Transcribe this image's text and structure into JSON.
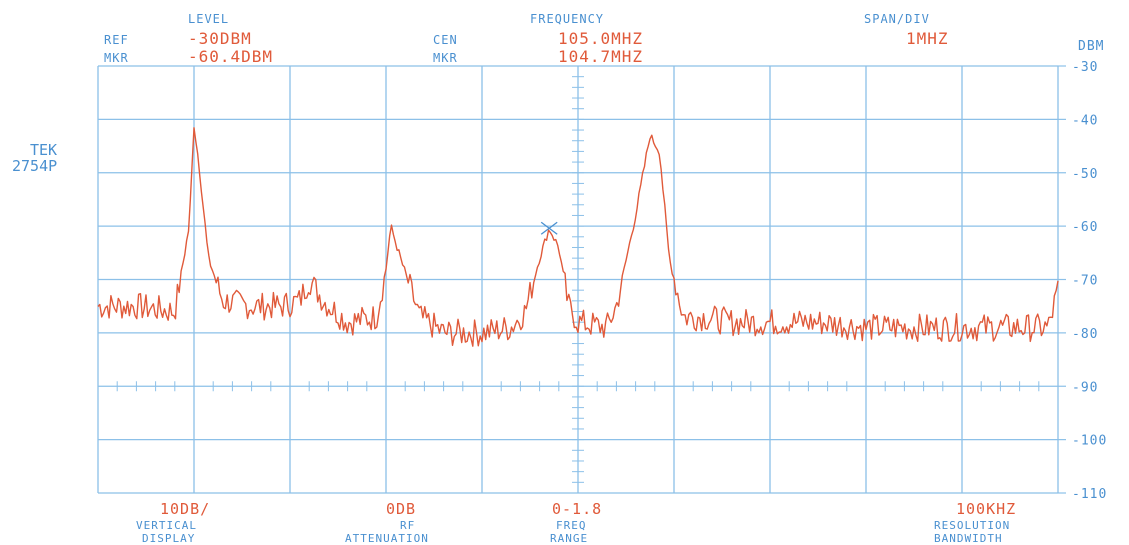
{
  "header": {
    "level_label": "LEVEL",
    "ref_label": "REF",
    "ref_value": "-30DBM",
    "mkr_label": "MKR",
    "mkr_level": "-60.4DBM",
    "frequency_label": "FREQUENCY",
    "cen_label": "CEN",
    "cen_value": "105.0MHZ",
    "mkr_label2": "MKR",
    "mkr_freq": "104.7MHZ",
    "span_label": "SPAN/DIV",
    "span_value": "1MHZ"
  },
  "instrument": {
    "model_line1": "TEK",
    "model_line2": "2754P"
  },
  "footer": {
    "vertical_value": "10DB/",
    "vertical_caption1": "VERTICAL",
    "vertical_caption2": "DISPLAY",
    "rf_value": "0DB",
    "rf_caption1": "RF",
    "rf_caption2": "ATTENUATION",
    "freq_value": "0-1.8",
    "freq_caption1": "FREQ",
    "freq_caption2": "RANGE",
    "res_value": "100KHZ",
    "res_caption1": "RESOLUTION",
    "res_caption2": "BANDWIDTH"
  },
  "colors": {
    "grid": "#8cc0e8",
    "text_blue": "#4a90d0",
    "trace": "#e05a3a"
  },
  "chart_data": {
    "type": "line",
    "ylabel": "DBM",
    "ylim": [
      -110,
      -30
    ],
    "yticks": [
      "-30",
      "-40",
      "-50",
      "-60",
      "-70",
      "-80",
      "-90",
      "-100",
      "-110"
    ],
    "xlim": [
      100.0,
      110.0
    ],
    "center_freq_mhz": 105.0,
    "span_per_div_mhz": 1,
    "marker": {
      "x": 104.7,
      "y": -60.4
    },
    "series": [
      {
        "x": [
          100.0,
          100.4,
          100.8,
          100.95,
          101.0,
          101.05,
          101.15,
          101.3,
          101.6,
          101.9,
          102.1,
          102.2,
          102.35,
          102.6,
          102.9,
          103.0,
          103.05,
          103.15,
          103.35,
          103.6,
          104.0,
          104.3,
          104.45,
          104.6,
          104.7,
          104.8,
          104.9,
          105.0,
          105.3,
          105.4,
          105.6,
          105.75,
          105.85,
          105.95,
          106.1,
          106.3,
          106.6,
          107.0,
          107.5,
          108.0,
          108.5,
          109.0,
          109.5,
          109.9,
          110.0
        ],
        "y": [
          -75,
          -75,
          -76,
          -60,
          -41,
          -48,
          -66,
          -74,
          -75,
          -75,
          -74,
          -70,
          -74,
          -78,
          -77,
          -68,
          -60,
          -66,
          -77,
          -80,
          -80,
          -79,
          -76,
          -66,
          -60.4,
          -64,
          -75,
          -78,
          -79,
          -75,
          -58,
          -43,
          -46,
          -66,
          -77,
          -77,
          -78,
          -78,
          -78,
          -79,
          -79,
          -79,
          -79,
          -79,
          -72
        ]
      }
    ]
  }
}
